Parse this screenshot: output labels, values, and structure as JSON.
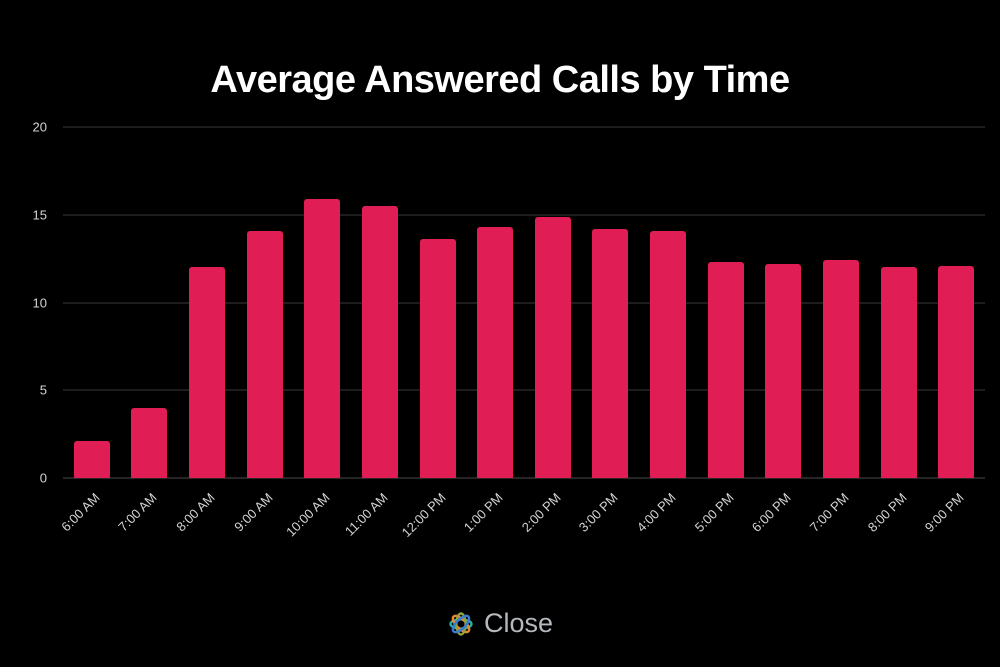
{
  "title": "Average Answered Calls by Time",
  "chart_data": {
    "type": "bar",
    "title": "Average Answered Calls by Time",
    "categories": [
      "6:00 AM",
      "7:00 AM",
      "8:00 AM",
      "9:00 AM",
      "10:00 AM",
      "11:00 AM",
      "12:00 PM",
      "1:00 PM",
      "2:00 PM",
      "3:00 PM",
      "4:00 PM",
      "5:00 PM",
      "6:00 PM",
      "7:00 PM",
      "8:00 PM",
      "9:00 PM"
    ],
    "values": [
      2.1,
      4.0,
      12.0,
      14.1,
      15.9,
      15.5,
      13.6,
      14.3,
      14.9,
      14.2,
      14.1,
      12.3,
      12.2,
      12.4,
      12.0,
      12.1
    ],
    "xlabel": "",
    "ylabel": "",
    "ylim": [
      0,
      20
    ],
    "yticks": [
      0,
      5,
      10,
      15,
      20
    ],
    "grid": true,
    "legend": "none",
    "bar_color": "#e11d55",
    "background": "#000000"
  },
  "footer": {
    "brand": "Close"
  },
  "colors": {
    "bar": "#e11d55",
    "grid": "#3a3a3a",
    "tick_label": "#d4d4d4",
    "title": "#ffffff",
    "brand_text": "#b4b9be",
    "logo_teal": "#2ab3a5",
    "logo_orange": "#e98a33",
    "logo_green": "#8fa23c",
    "logo_blue": "#3b7bd4"
  }
}
